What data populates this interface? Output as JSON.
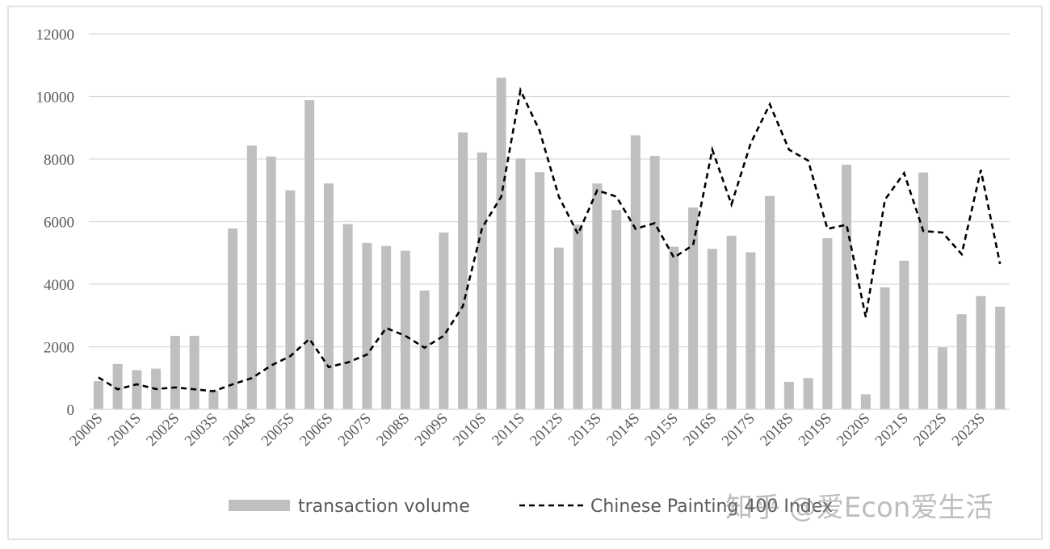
{
  "chart_data": {
    "type": "bar_line",
    "categories": [
      "2000S",
      null,
      "2001S",
      null,
      "2002S",
      null,
      "2003S",
      null,
      "2004S",
      null,
      "2005S",
      null,
      "2006S",
      null,
      "2007S",
      null,
      "2008S",
      null,
      "2009S",
      null,
      "2010S",
      null,
      "2011S",
      null,
      "2012S",
      null,
      "2013S",
      null,
      "2014S",
      null,
      "2015S",
      null,
      "2016S",
      null,
      "2017S",
      null,
      "2018S",
      null,
      "2019S",
      null,
      "2020S",
      null,
      "2021S",
      null,
      "2022S",
      null,
      "2023S",
      null
    ],
    "series": [
      {
        "name": "transaction volume",
        "type": "bar",
        "color": "#bfbfbf",
        "values": [
          900,
          1450,
          1250,
          1300,
          2350,
          2350,
          600,
          5780,
          8430,
          8080,
          7000,
          9880,
          7220,
          5920,
          5320,
          5220,
          5070,
          3800,
          5650,
          8850,
          8210,
          10600,
          8020,
          7580,
          5170,
          5900,
          7220,
          6370,
          8760,
          8100,
          5200,
          6450,
          5130,
          5550,
          5020,
          6820,
          880,
          1000,
          5470,
          7820,
          480,
          3900,
          4750,
          7570,
          1980,
          3040,
          3620,
          3280
        ]
      },
      {
        "name": "Chinese Painting 400 Index",
        "type": "line",
        "color": "#000000",
        "dashed": true,
        "values": [
          1020,
          640,
          800,
          650,
          700,
          640,
          580,
          800,
          1000,
          1400,
          1700,
          2250,
          1350,
          1500,
          1750,
          2600,
          2350,
          1970,
          2350,
          3300,
          5800,
          6800,
          10200,
          8900,
          6800,
          5600,
          7000,
          6800,
          5770,
          5950,
          4850,
          5250,
          8300,
          6550,
          8500,
          9750,
          8300,
          7950,
          5770,
          5900,
          2950,
          6700,
          7550,
          5700,
          5650,
          4960,
          7650,
          4650
        ]
      }
    ],
    "ylim": [
      0,
      12000
    ],
    "yticks": [
      0,
      2000,
      4000,
      6000,
      8000,
      10000,
      12000
    ],
    "grid": true,
    "legend": "bottom",
    "watermark": "知乎 @爱Econ爱生活"
  }
}
